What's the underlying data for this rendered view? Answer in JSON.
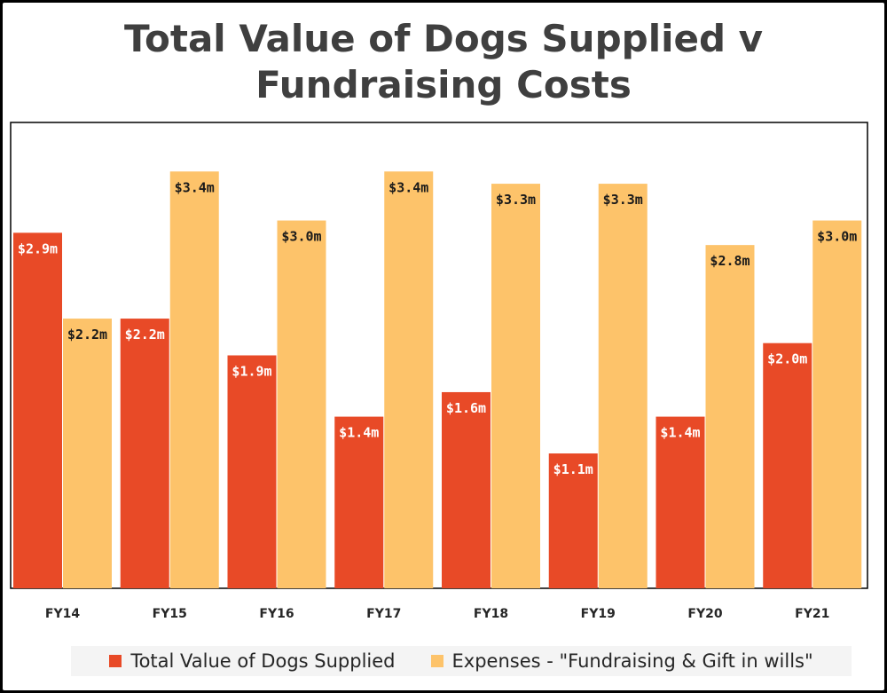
{
  "chart_data": {
    "type": "bar",
    "title": "Total Value of Dogs Supplied v Fundraising Costs",
    "title_lines": [
      "Total Value of Dogs Supplied v",
      "Fundraising Costs"
    ],
    "categories": [
      "FY14",
      "FY15",
      "FY16",
      "FY17",
      "FY18",
      "FY19",
      "FY20",
      "FY21"
    ],
    "series": [
      {
        "name": "Total Value of Dogs Supplied",
        "color": "#e84a27",
        "values": [
          2.9,
          2.2,
          1.9,
          1.4,
          1.6,
          1.1,
          1.4,
          2.0
        ],
        "labels": [
          "$2.9m",
          "$2.2m",
          "$1.9m",
          "$1.4m",
          "$1.6m",
          "$1.1m",
          "$1.4m",
          "$2.0m"
        ]
      },
      {
        "name": "Expenses - \"Fundraising & Gift in wills\"",
        "color": "#fdc36a",
        "values": [
          2.2,
          3.4,
          3.0,
          3.4,
          3.3,
          3.3,
          2.8,
          3.0
        ],
        "labels": [
          "$2.2m",
          "$3.4m",
          "$3.0m",
          "$3.4m",
          "$3.3m",
          "$3.3m",
          "$2.8m",
          "$3.0m"
        ]
      }
    ],
    "ylim": [
      0,
      3.8
    ],
    "grid": false,
    "legend_position": "bottom"
  }
}
